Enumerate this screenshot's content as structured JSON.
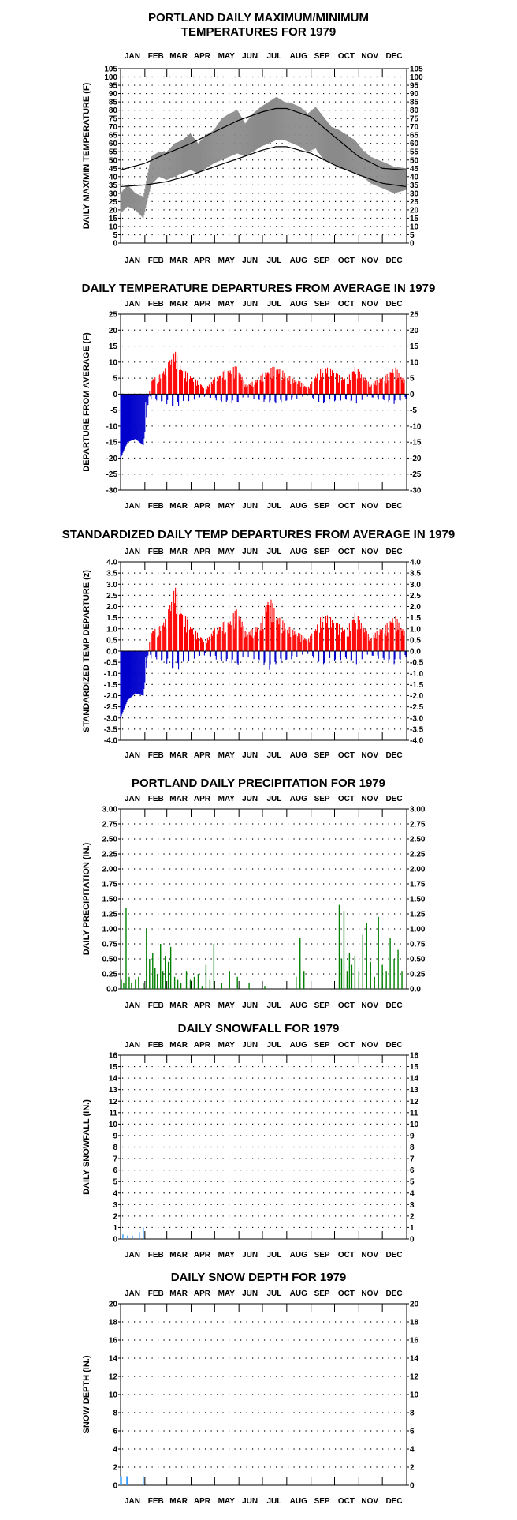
{
  "months": [
    "JAN",
    "FEB",
    "MAR",
    "APR",
    "MAY",
    "JUN",
    "JUL",
    "AUG",
    "SEP",
    "OCT",
    "NOV",
    "DEC"
  ],
  "colors": {
    "band": "#8a8a8a",
    "normal_line": "#000000",
    "positive": "#ff0000",
    "negative": "#0000cc",
    "precip": "#008000",
    "snow": "#3399ff",
    "grid": "#000000"
  },
  "chart_data": [
    {
      "id": "maxmin",
      "type": "area",
      "title_lines": [
        "PORTLAND DAILY MAXIMUM/MINIMUM",
        "TEMPERATURES FOR 1979"
      ],
      "ylabel": "DAILY MAX/MIN TEMPERATURE (F)",
      "ylim": [
        0,
        105
      ],
      "yticks": [
        0,
        5,
        10,
        15,
        20,
        25,
        30,
        35,
        40,
        45,
        50,
        55,
        60,
        65,
        70,
        75,
        80,
        85,
        90,
        95,
        100,
        105
      ],
      "ytick_labels": [
        "0",
        "5",
        "10",
        "15",
        "20",
        "25",
        "30",
        "35",
        "40",
        "45",
        "50",
        "55",
        "60",
        "65",
        "70",
        "75",
        "80",
        "85",
        "90",
        "95",
        "100",
        "105"
      ],
      "grid": true,
      "series": [
        {
          "role": "daily_max",
          "x_day": [
            1,
            10,
            20,
            30,
            40,
            50,
            60,
            70,
            80,
            90,
            100,
            110,
            120,
            130,
            140,
            150,
            160,
            170,
            180,
            190,
            200,
            210,
            220,
            230,
            240,
            250,
            260,
            270,
            280,
            290,
            300,
            310,
            320,
            330,
            340,
            350,
            365
          ],
          "values": [
            30,
            35,
            30,
            28,
            52,
            55,
            55,
            60,
            62,
            66,
            60,
            65,
            68,
            75,
            78,
            80,
            72,
            78,
            82,
            85,
            88,
            85,
            84,
            82,
            78,
            82,
            76,
            70,
            68,
            65,
            62,
            56,
            52,
            50,
            48,
            46,
            45
          ]
        },
        {
          "role": "daily_min",
          "x_day": [
            1,
            10,
            20,
            30,
            40,
            50,
            60,
            70,
            80,
            90,
            100,
            110,
            120,
            130,
            140,
            150,
            160,
            170,
            180,
            190,
            200,
            210,
            220,
            230,
            240,
            250,
            260,
            270,
            280,
            290,
            300,
            310,
            320,
            330,
            340,
            350,
            365
          ],
          "values": [
            18,
            22,
            20,
            15,
            35,
            40,
            38,
            40,
            42,
            44,
            42,
            45,
            48,
            50,
            52,
            54,
            52,
            55,
            58,
            60,
            62,
            62,
            60,
            58,
            55,
            57,
            50,
            48,
            45,
            44,
            42,
            40,
            36,
            34,
            32,
            30,
            32
          ]
        },
        {
          "role": "normal_max",
          "x_day": [
            1,
            32,
            60,
            91,
            121,
            152,
            182,
            199,
            213,
            244,
            274,
            305,
            335,
            365
          ],
          "values": [
            44,
            48,
            54,
            60,
            67,
            74,
            79,
            81,
            81,
            76,
            64,
            52,
            45,
            44
          ]
        },
        {
          "role": "normal_min",
          "x_day": [
            1,
            32,
            60,
            91,
            121,
            152,
            182,
            199,
            213,
            244,
            274,
            305,
            335,
            365
          ],
          "values": [
            34,
            35,
            37,
            41,
            46,
            51,
            56,
            58,
            58,
            54,
            47,
            41,
            36,
            34
          ]
        }
      ]
    },
    {
      "id": "departures",
      "type": "bar",
      "title_lines": [
        "DAILY TEMPERATURE DEPARTURES FROM AVERAGE IN 1979"
      ],
      "ylabel": "DEPARTURE FROM AVERAGE (F)",
      "ylim": [
        -30,
        25
      ],
      "yticks": [
        -30,
        -25,
        -20,
        -15,
        -10,
        -5,
        0,
        5,
        10,
        15,
        20,
        25
      ],
      "ytick_labels": [
        "-30",
        "-25",
        "-20",
        "-15",
        "-10",
        "-5",
        "0",
        "5",
        "10",
        "15",
        "20",
        "25"
      ],
      "grid": true,
      "x_day": [
        1,
        10,
        20,
        30,
        40,
        50,
        60,
        70,
        80,
        90,
        100,
        110,
        120,
        130,
        140,
        150,
        160,
        170,
        180,
        190,
        200,
        210,
        220,
        230,
        240,
        250,
        260,
        270,
        280,
        290,
        300,
        310,
        320,
        330,
        340,
        350,
        365
      ],
      "values": [
        -20,
        -15,
        -14,
        -16,
        5,
        6,
        9,
        14,
        8,
        6,
        4,
        2,
        5,
        7,
        8,
        9,
        3,
        4,
        6,
        8,
        9,
        7,
        5,
        4,
        2,
        6,
        9,
        8,
        6,
        5,
        9,
        6,
        3,
        5,
        6,
        9,
        4
      ]
    },
    {
      "id": "standardized",
      "type": "bar",
      "title_lines": [
        "STANDARDIZED DAILY TEMP DEPARTURES FROM AVERAGE IN 1979"
      ],
      "ylabel": "STANDARDIZED TEMP DEPARTURE (z)",
      "ylim": [
        -4.0,
        4.0
      ],
      "yticks": [
        -4.0,
        -3.5,
        -3.0,
        -2.5,
        -2.0,
        -1.5,
        -1.0,
        -0.5,
        0.0,
        0.5,
        1.0,
        1.5,
        2.0,
        2.5,
        3.0,
        3.5,
        4.0
      ],
      "ytick_labels": [
        "-4.0",
        "-3.5",
        "-3.0",
        "-2.5",
        "-2.0",
        "-1.5",
        "-1.0",
        "-0.5",
        "0.0",
        "0.5",
        "1.0",
        "1.5",
        "2.0",
        "2.5",
        "3.0",
        "3.5",
        "4.0"
      ],
      "grid": true,
      "x_day": [
        1,
        10,
        20,
        30,
        40,
        50,
        60,
        70,
        80,
        90,
        100,
        110,
        120,
        130,
        140,
        150,
        160,
        170,
        180,
        190,
        200,
        210,
        220,
        230,
        240,
        250,
        260,
        270,
        280,
        290,
        300,
        310,
        320,
        330,
        340,
        350,
        365
      ],
      "values": [
        -3.0,
        -2.2,
        -1.9,
        -2.0,
        1.0,
        1.1,
        1.6,
        3.0,
        1.8,
        1.2,
        0.8,
        0.5,
        1.0,
        1.3,
        1.4,
        2.0,
        0.9,
        1.0,
        1.3,
        2.6,
        1.7,
        1.3,
        1.0,
        0.8,
        0.5,
        1.1,
        1.8,
        1.5,
        1.2,
        1.0,
        1.8,
        1.2,
        0.6,
        1.0,
        1.2,
        1.7,
        0.8
      ]
    },
    {
      "id": "precip",
      "type": "bar",
      "title_lines": [
        "PORTLAND DAILY PRECIPITATION FOR 1979"
      ],
      "ylabel": "DAILY PRECIPITATION (IN.)",
      "ylim": [
        0,
        3.0
      ],
      "yticks": [
        0,
        0.25,
        0.5,
        0.75,
        1.0,
        1.25,
        1.5,
        1.75,
        2.0,
        2.25,
        2.5,
        2.75,
        3.0
      ],
      "ytick_labels": [
        "0.0",
        "0.25",
        "0.50",
        "0.75",
        "1.00",
        "1.25",
        "1.50",
        "1.75",
        "2.00",
        "2.25",
        "2.50",
        "2.75",
        "3.00"
      ],
      "grid": true,
      "x_day": [
        2,
        5,
        8,
        12,
        15,
        20,
        24,
        30,
        34,
        38,
        42,
        45,
        48,
        52,
        55,
        58,
        62,
        65,
        70,
        74,
        78,
        85,
        90,
        95,
        100,
        105,
        110,
        115,
        120,
        130,
        140,
        150,
        165,
        185,
        225,
        230,
        235,
        280,
        283,
        286,
        290,
        293,
        296,
        300,
        305,
        310,
        315,
        320,
        325,
        330,
        335,
        340,
        345,
        350,
        355,
        360
      ],
      "values": [
        0.15,
        0.1,
        1.35,
        0.2,
        0.1,
        0.15,
        0.2,
        0.1,
        1.0,
        0.5,
        0.6,
        0.35,
        0.25,
        0.75,
        0.3,
        0.55,
        0.45,
        0.7,
        0.2,
        0.15,
        0.1,
        0.3,
        0.15,
        0.2,
        0.25,
        0.05,
        0.4,
        0.15,
        0.75,
        0.1,
        0.3,
        0.2,
        0.1,
        0.05,
        0.2,
        0.85,
        0.3,
        1.4,
        0.5,
        1.3,
        0.3,
        0.6,
        0.4,
        0.55,
        0.3,
        0.9,
        1.1,
        0.45,
        0.2,
        1.2,
        0.4,
        0.3,
        0.85,
        0.5,
        0.65,
        0.3
      ]
    },
    {
      "id": "snowfall",
      "type": "bar",
      "title_lines": [
        "DAILY SNOWFALL FOR 1979"
      ],
      "ylabel": "DAILY SNOWFALL (IN.)",
      "ylim": [
        0,
        16
      ],
      "yticks": [
        0,
        1,
        2,
        3,
        4,
        5,
        6,
        7,
        8,
        9,
        10,
        11,
        12,
        13,
        14,
        15,
        16
      ],
      "ytick_labels": [
        "0",
        "1",
        "2",
        "3",
        "4",
        "5",
        "6",
        "7",
        "8",
        "9",
        "10",
        "11",
        "12",
        "13",
        "14",
        "15",
        "16"
      ],
      "grid": true,
      "x_day": [
        4,
        10,
        16,
        25,
        30
      ],
      "values": [
        0.4,
        0.3,
        0.3,
        0.6,
        1.0
      ]
    },
    {
      "id": "snowdepth",
      "type": "bar",
      "title_lines": [
        "DAILY SNOW DEPTH FOR 1979"
      ],
      "ylabel": "SNOW DEPTH (IN.)",
      "ylim": [
        0,
        20
      ],
      "yticks": [
        0,
        2,
        4,
        6,
        8,
        10,
        12,
        14,
        16,
        18,
        20
      ],
      "ytick_labels": [
        "0",
        "2",
        "4",
        "6",
        "8",
        "10",
        "12",
        "14",
        "16",
        "18",
        "20"
      ],
      "grid": true,
      "x_day": [
        1,
        2,
        9,
        10,
        30
      ],
      "values": [
        1,
        1,
        1,
        1,
        1
      ]
    }
  ]
}
